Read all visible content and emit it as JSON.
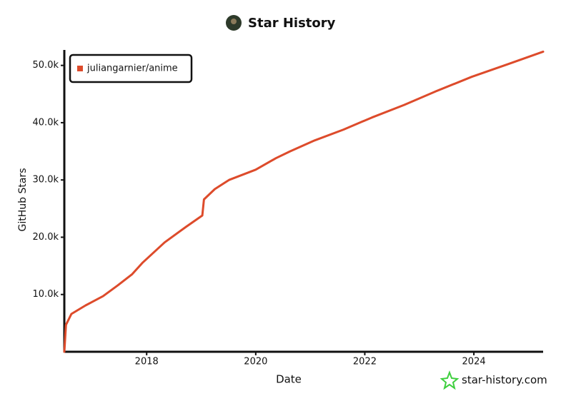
{
  "chart_data": {
    "type": "line",
    "title": "Star History",
    "x_label": "Date",
    "y_label": "GitHub Stars",
    "watermark": "star-history.com",
    "x": [
      2016.49,
      2016.52,
      2016.62,
      2016.88,
      2017.2,
      2017.47,
      2017.73,
      2017.93,
      2018.33,
      2018.72,
      2019.02,
      2019.05,
      2019.25,
      2019.51,
      2020.0,
      2020.37,
      2020.63,
      2021.08,
      2021.61,
      2022.13,
      2022.72,
      2023.31,
      2023.96,
      2024.62,
      2025.27
    ],
    "series": [
      {
        "name": "juliangarnier/anime",
        "color": "#dd4b2b",
        "values": [
          0,
          4700,
          6600,
          8100,
          9700,
          11600,
          13500,
          15600,
          19100,
          21800,
          23800,
          26600,
          28400,
          30000,
          31800,
          33800,
          35000,
          36900,
          38800,
          40900,
          43100,
          45500,
          48000,
          50200,
          52400
        ]
      }
    ],
    "xlim": [
      2016.49,
      2025.27
    ],
    "xticks": [
      2018,
      2020,
      2022,
      2024
    ],
    "ylim": [
      0,
      52700
    ],
    "yticks": [
      {
        "value": 10000,
        "label": "10.0k"
      },
      {
        "value": 20000,
        "label": "20.0k"
      },
      {
        "value": 30000,
        "label": "30.0k"
      },
      {
        "value": 40000,
        "label": "40.0k"
      },
      {
        "value": 50000,
        "label": "50.0k"
      }
    ],
    "legend": "top-left",
    "grid": false
  }
}
